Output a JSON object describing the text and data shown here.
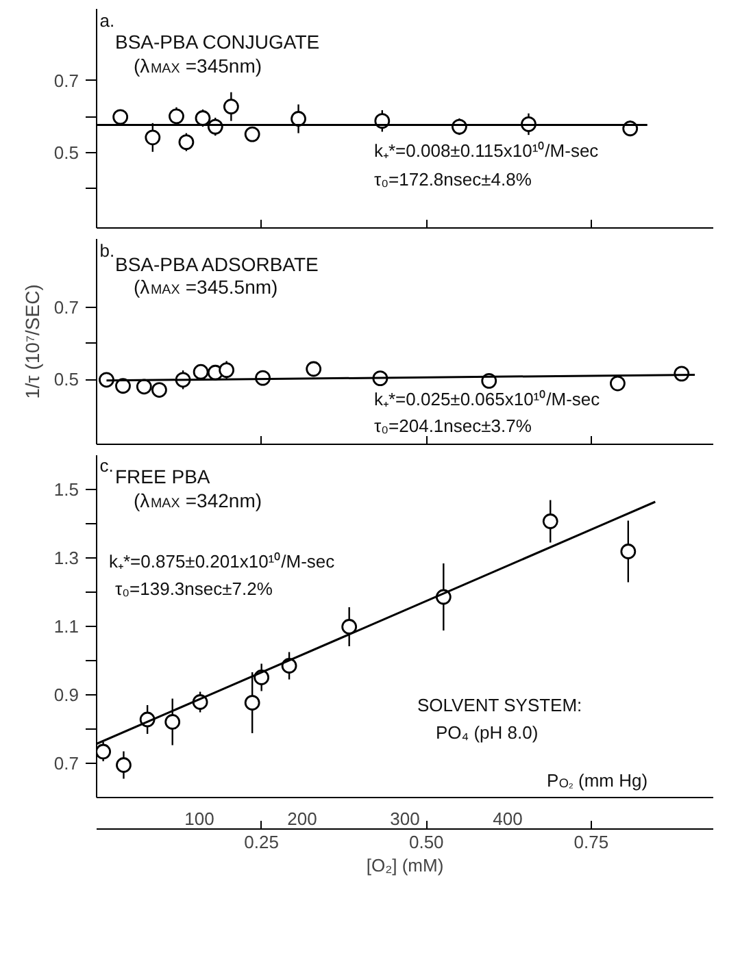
{
  "chart_data": [
    {
      "type": "scatter",
      "title": "BSA-PBA CONJUGATE",
      "subtitle": "(λ$_{MAX}$ =345nm)",
      "annotations": [
        "a.",
        "k₊*=0.008±0.115x10¹⁰/M-sec",
        "τ₀=172.8nsec±4.8%"
      ],
      "line_style": "solid",
      "grid": false,
      "tick_labels": "y",
      "xlim": [
        0,
        0.935
      ],
      "xticks": [
        {
          "value": 0.25,
          "label": null
        },
        {
          "value": 0.5,
          "label": null
        },
        {
          "value": 0.75,
          "label": null
        }
      ],
      "ylim": [
        0.29,
        0.9
      ],
      "yticks": [
        {
          "value": 0.4,
          "label": null
        },
        0.5,
        {
          "value": 0.6,
          "label": null
        },
        0.7
      ],
      "series": [
        {
          "marker": "circle",
          "color": "#000000",
          "x": [
            0.036,
            0.085,
            0.121,
            0.136,
            0.161,
            0.18,
            0.204,
            0.236,
            0.306,
            0.433,
            0.55,
            0.655,
            0.809
          ],
          "values": [
            0.599,
            0.542,
            0.601,
            0.529,
            0.596,
            0.572,
            0.628,
            0.551,
            0.594,
            0.588,
            0.572,
            0.579,
            0.567
          ],
          "errors": [
            0.01,
            0.04,
            0.025,
            0.025,
            0.024,
            0.025,
            0.04,
            null,
            0.04,
            0.03,
            0.023,
            0.03,
            0.022
          ]
        },
        {
          "type": "line",
          "color": "#000000",
          "x": [
            0,
            0.835
          ],
          "values": [
            0.577,
            0.577
          ]
        }
      ]
    },
    {
      "type": "scatter",
      "title": "BSA-PBA ADSORBATE",
      "subtitle": "(λ$_{MAX}$ =345.5nm)",
      "ylabel": "1/τ (10⁷/SEC)",
      "annotations": [
        "b.",
        "k₊*=0.025±0.065x10¹⁰/M-sec",
        "τ₀=204.1nsec±3.7%"
      ],
      "line_style": "solid",
      "grid": false,
      "tick_labels": "y",
      "xlim": [
        0,
        0.935
      ],
      "xticks": [
        {
          "value": 0.25,
          "label": null
        },
        {
          "value": 0.5,
          "label": null
        },
        {
          "value": 0.75,
          "label": null
        }
      ],
      "ylim": [
        0.32,
        0.89
      ],
      "yticks": [
        0.5,
        {
          "value": 0.6,
          "label": null
        },
        0.7
      ],
      "series": [
        {
          "marker": "circle",
          "color": "#000000",
          "x": [
            0.015,
            0.04,
            0.072,
            0.095,
            0.131,
            0.158,
            0.18,
            0.197,
            0.252,
            0.329,
            0.43,
            0.595,
            0.79,
            0.887
          ],
          "values": [
            0.499,
            0.482,
            0.48,
            0.471,
            0.499,
            0.521,
            0.519,
            0.526,
            0.504,
            0.529,
            0.503,
            0.496,
            0.489,
            0.516
          ],
          "errors": [
            0.015,
            null,
            null,
            0.015,
            0.026,
            0.015,
            0.015,
            0.025,
            0.01,
            null,
            0.01,
            null,
            0.02,
            0.018
          ]
        },
        {
          "type": "line",
          "color": "#000000",
          "x": [
            0.015,
            0.907
          ],
          "values": [
            0.497,
            0.513
          ]
        }
      ]
    },
    {
      "type": "scatter",
      "title": "FREE PBA",
      "subtitle": "(λ$_{MAX}$ =342nm)",
      "xlabel": "[O₂] (mM)",
      "x2label": "P$_{O₂}$ (mm Hg)",
      "annotations": [
        "c.",
        "k₊*=0.875±0.201x10¹⁰/M-sec",
        "τ₀=139.3nsec±7.2%",
        "SOLVENT SYSTEM:",
        "PO₄ (pH 8.0)"
      ],
      "line_style": "solid",
      "grid": false,
      "xlim": [
        0,
        0.935
      ],
      "xticks": [
        {
          "value": 0.25,
          "label": "0.25"
        },
        {
          "value": 0.5,
          "label": "0.50"
        },
        {
          "value": 0.75,
          "label": "0.75"
        }
      ],
      "x2lim": [
        0,
        600
      ],
      "x2ticks": [
        100,
        200,
        300,
        400
      ],
      "ylim": [
        0.6,
        1.6
      ],
      "yticks": [
        0.7,
        {
          "value": 0.8,
          "label": null
        },
        0.9,
        {
          "value": 1.0,
          "label": null
        },
        1.1,
        {
          "value": 1.2,
          "label": null
        },
        1.3,
        {
          "value": 1.4,
          "label": null
        },
        1.5
      ],
      "series": [
        {
          "marker": "circle",
          "color": "#000000",
          "x": [
            0.01,
            0.041,
            0.077,
            0.115,
            0.157,
            0.236,
            0.25,
            0.292,
            0.383,
            0.526,
            0.688,
            0.806
          ],
          "values": [
            0.734,
            0.695,
            0.828,
            0.821,
            0.879,
            0.877,
            0.951,
            0.985,
            1.099,
            1.186,
            1.407,
            1.319
          ],
          "errors": [
            0.028,
            0.04,
            0.042,
            0.068,
            0.03,
            0.089,
            0.04,
            0.04,
            0.057,
            0.098,
            0.062,
            0.09
          ]
        },
        {
          "type": "line",
          "color": "#000000",
          "x": [
            0,
            0.847
          ],
          "values": [
            0.757,
            1.464
          ]
        }
      ]
    }
  ]
}
